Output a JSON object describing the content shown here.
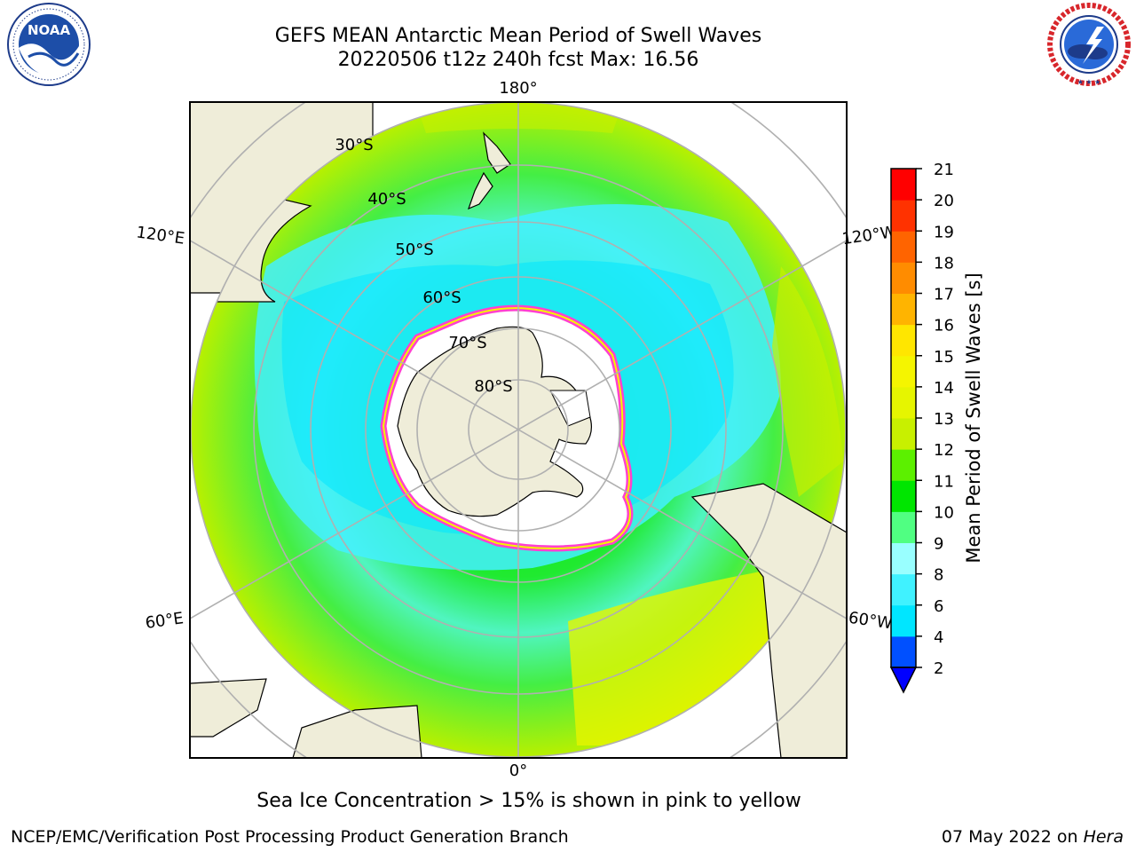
{
  "title": {
    "line1": "GEFS MEAN Antarctic Mean Period of Swell Waves",
    "line2": "20220506 t12z 240h fcst   Max: 16.56"
  },
  "logos": {
    "left": {
      "name": "noaa-logo",
      "text": "NOAA",
      "ring_text": "NATIONAL OCEANIC AND ATMOSPHERIC ADMINISTRATION · U.S. DEPARTMENT OF COMMERCE"
    },
    "right": {
      "name": "nws-logo",
      "ring_text": "NATIONAL WEATHER SERVICE"
    }
  },
  "map": {
    "projection": "south-polar-stereographic",
    "longitude_labels": [
      "180°",
      "120°E",
      "120°W",
      "60°E",
      "60°W",
      "0°"
    ],
    "latitude_labels": [
      "30°S",
      "40°S",
      "50°S",
      "60°S",
      "70°S",
      "80°S"
    ]
  },
  "colorbar": {
    "label": "Mean Period of Swell Waves [s]",
    "ticks": [
      2,
      4,
      6,
      8,
      9,
      10,
      11,
      12,
      13,
      14,
      15,
      16,
      17,
      18,
      19,
      20,
      21
    ],
    "colors": [
      "#0050ff",
      "#00e6ff",
      "#40f2ff",
      "#99ffff",
      "#50ff82",
      "#00e600",
      "#5cf000",
      "#c8f000",
      "#e6f500",
      "#f5f500",
      "#ffe600",
      "#ffb400",
      "#ff8c00",
      "#ff6400",
      "#ff3200",
      "#ff0000"
    ],
    "extend_below_color": "#0000ff"
  },
  "caption": "Sea Ice Concentration > 15% is shown in pink to yellow",
  "footer": {
    "credit": "NCEP/EMC/Verification Post Processing Product Generation Branch",
    "date": "07 May 2022 on",
    "host": "Hera"
  }
}
